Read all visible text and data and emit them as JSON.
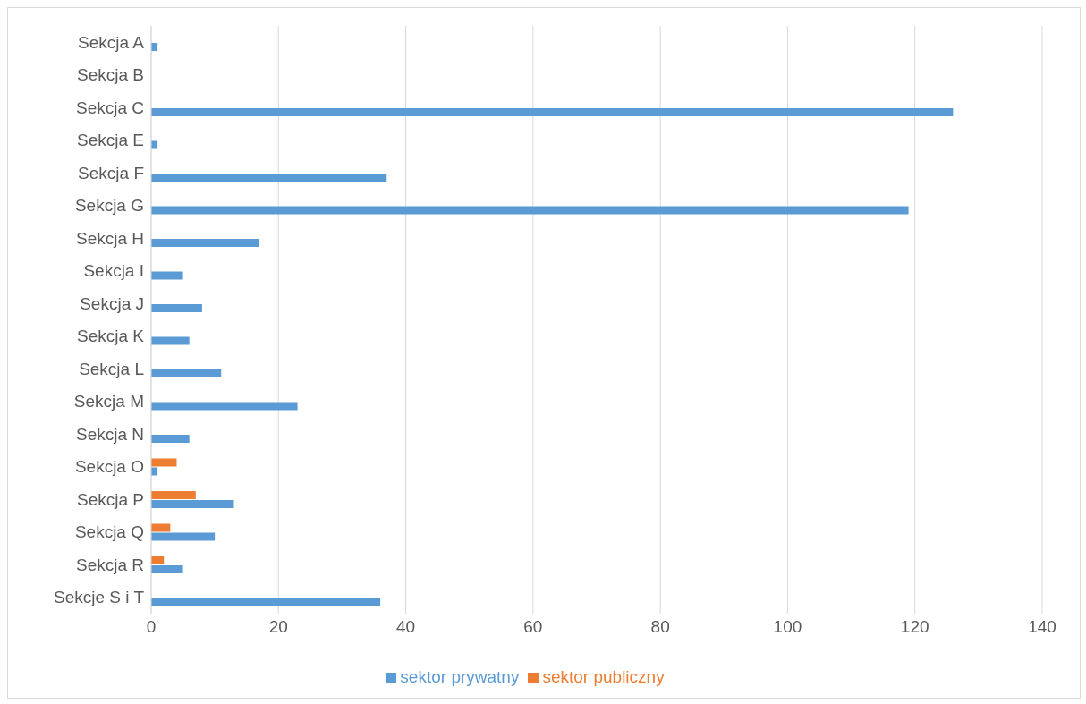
{
  "chart_data": {
    "type": "bar",
    "orientation": "horizontal",
    "categories": [
      "Sekcja A",
      "Sekcja B",
      "Sekcja C",
      "Sekcja E",
      "Sekcja F",
      "Sekcja G",
      "Sekcja H",
      "Sekcja I",
      "Sekcja J",
      "Sekcja K",
      "Sekcja L",
      "Sekcja M",
      "Sekcja N",
      "Sekcja O",
      "Sekcja P",
      "Sekcja Q",
      "Sekcja R",
      "Sekcje S i T"
    ],
    "series": [
      {
        "name": "sektor publiczny",
        "color": "#ed7d31",
        "values": [
          0,
          0,
          0,
          0,
          0,
          0,
          0,
          0,
          0,
          0,
          0,
          0,
          0,
          4,
          7,
          3,
          2,
          0
        ]
      },
      {
        "name": "sektor prywatny",
        "color": "#5b9bd5",
        "values": [
          1,
          0,
          126,
          1,
          37,
          119,
          17,
          5,
          8,
          6,
          11,
          23,
          6,
          1,
          13,
          10,
          5,
          36
        ]
      }
    ],
    "xlim": [
      0,
      140
    ],
    "xticks": [
      0,
      20,
      40,
      60,
      80,
      100,
      120,
      140
    ],
    "grid": "x",
    "legend": "bottom"
  }
}
